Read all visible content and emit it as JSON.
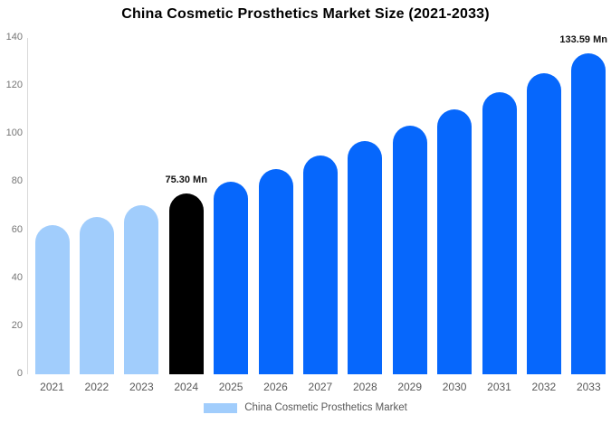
{
  "title": "China Cosmetic Prosthetics Market Size (2021-2033)",
  "chart_data": {
    "type": "bar",
    "title": "China Cosmetic Prosthetics Market Size (2021-2033)",
    "categories": [
      "2021",
      "2022",
      "2023",
      "2024",
      "2025",
      "2026",
      "2027",
      "2028",
      "2029",
      "2030",
      "2031",
      "2032",
      "2033"
    ],
    "values": [
      62.0,
      65.5,
      70.3,
      75.3,
      80.25,
      85.5,
      91.1,
      97.1,
      103.5,
      110.3,
      117.55,
      125.3,
      133.59
    ],
    "xlabel": "",
    "ylabel": "",
    "ylim": [
      0,
      140
    ],
    "yticks": [
      0,
      20,
      40,
      60,
      80,
      100,
      120,
      140
    ],
    "grid": false,
    "legend_position": "bottom",
    "data_labels": [
      {
        "category": "2024",
        "index": 3,
        "text": "75.30 Mn"
      },
      {
        "category": "2033",
        "index": 12,
        "text": "133.59 Mn"
      }
    ],
    "colors": {
      "historical": "#a1cdfc",
      "base_year": "#000000",
      "forecast": "#0667fc"
    },
    "color_keys": [
      "historical",
      "historical",
      "historical",
      "base_year",
      "forecast",
      "forecast",
      "forecast",
      "forecast",
      "forecast",
      "forecast",
      "forecast",
      "forecast",
      "forecast"
    ],
    "axis_line_color": "#d9d9d9"
  },
  "legend": {
    "label": "China Cosmetic Prosthetics Market",
    "swatch_color": "#a1cdfc"
  }
}
